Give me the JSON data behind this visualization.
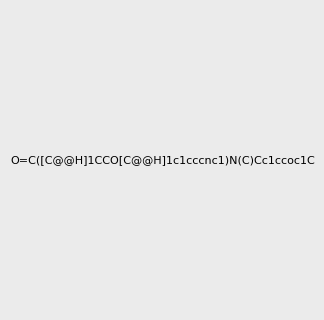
{
  "smiles": "O=C([C@@H]1CCO[C@@H]1c1cccnc1)N(C)Cc1ccoc1C",
  "image_size": 300,
  "background_color": "#ebebeb",
  "bond_color": "#000000",
  "atom_colors": {
    "O": "#ff0000",
    "N": "#0000ff",
    "C": "#000000"
  },
  "title": ""
}
